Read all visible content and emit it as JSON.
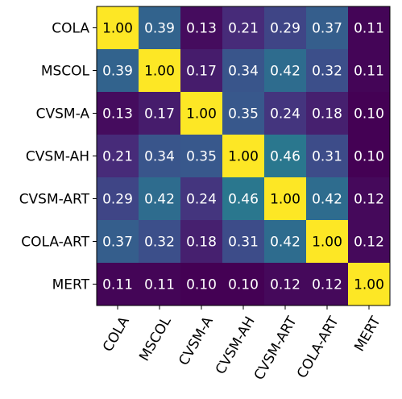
{
  "chart_data": {
    "type": "heatmap",
    "title": "",
    "xlabel": "",
    "ylabel": "",
    "row_labels": [
      "COLA",
      "MSCOL",
      "CVSM-A",
      "CVSM-AH",
      "CVSM-ART",
      "COLA-ART",
      "MERT"
    ],
    "col_labels": [
      "COLA",
      "MSCOL",
      "CVSM-A",
      "CVSM-AH",
      "CVSM-ART",
      "COLA-ART",
      "MERT"
    ],
    "values": [
      [
        1.0,
        0.39,
        0.13,
        0.21,
        0.29,
        0.37,
        0.11
      ],
      [
        0.39,
        1.0,
        0.17,
        0.34,
        0.42,
        0.32,
        0.11
      ],
      [
        0.13,
        0.17,
        1.0,
        0.35,
        0.24,
        0.18,
        0.1
      ],
      [
        0.21,
        0.34,
        0.35,
        1.0,
        0.46,
        0.31,
        0.1
      ],
      [
        0.29,
        0.42,
        0.24,
        0.46,
        1.0,
        0.42,
        0.12
      ],
      [
        0.37,
        0.32,
        0.18,
        0.31,
        0.42,
        1.0,
        0.12
      ],
      [
        0.11,
        0.11,
        0.1,
        0.1,
        0.12,
        0.12,
        1.0
      ]
    ],
    "colormap": "viridis",
    "value_format": "2 decimals",
    "x_tick_rotation": "60 degrees",
    "grid": false,
    "legend": "none"
  }
}
